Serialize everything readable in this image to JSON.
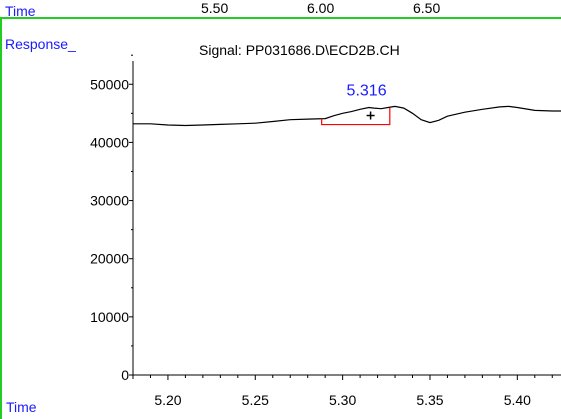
{
  "top_axis": {
    "label": "Time",
    "ticks": [
      "5.50",
      "6.00",
      "6.50"
    ]
  },
  "response_label": "Response_",
  "bottom_time_label": "Time",
  "colors": {
    "label_blue": "#1a1aff",
    "trace": "#000000",
    "integration": "#ff0000",
    "frame": "#22cc22"
  },
  "chart_data": {
    "type": "line",
    "title": "Signal: PP031686.D\\ECD2B.CH",
    "xlabel": "",
    "ylabel": "",
    "xlim": [
      5.18,
      5.425
    ],
    "ylim": [
      0,
      54000
    ],
    "x_ticks": [
      "5.20",
      "5.25",
      "5.30",
      "5.35",
      "5.40"
    ],
    "y_ticks": [
      "0",
      "10000",
      "20000",
      "30000",
      "40000",
      "50000"
    ],
    "series": [
      {
        "x": [
          5.18,
          5.19,
          5.2,
          5.21,
          5.22,
          5.23,
          5.24,
          5.25,
          5.26,
          5.27,
          5.28,
          5.29,
          5.295,
          5.3,
          5.305,
          5.31,
          5.315,
          5.318,
          5.322,
          5.326,
          5.33,
          5.335,
          5.34,
          5.345,
          5.35,
          5.355,
          5.36,
          5.37,
          5.38,
          5.39,
          5.395,
          5.4,
          5.41,
          5.42,
          5.425
        ],
        "y": [
          43200,
          43200,
          43000,
          42900,
          43000,
          43100,
          43200,
          43300,
          43600,
          43900,
          44000,
          44100,
          44600,
          45000,
          45300,
          45700,
          46000,
          45900,
          45800,
          46000,
          46200,
          45900,
          45000,
          43900,
          43400,
          43800,
          44500,
          45200,
          45700,
          46100,
          46200,
          46000,
          45500,
          45400,
          45400
        ]
      }
    ],
    "peak": {
      "label": "5.316",
      "x": 5.316,
      "y": 46000,
      "baseline_start": [
        5.288,
        44100
      ],
      "baseline_end": [
        5.327,
        46000
      ]
    }
  }
}
